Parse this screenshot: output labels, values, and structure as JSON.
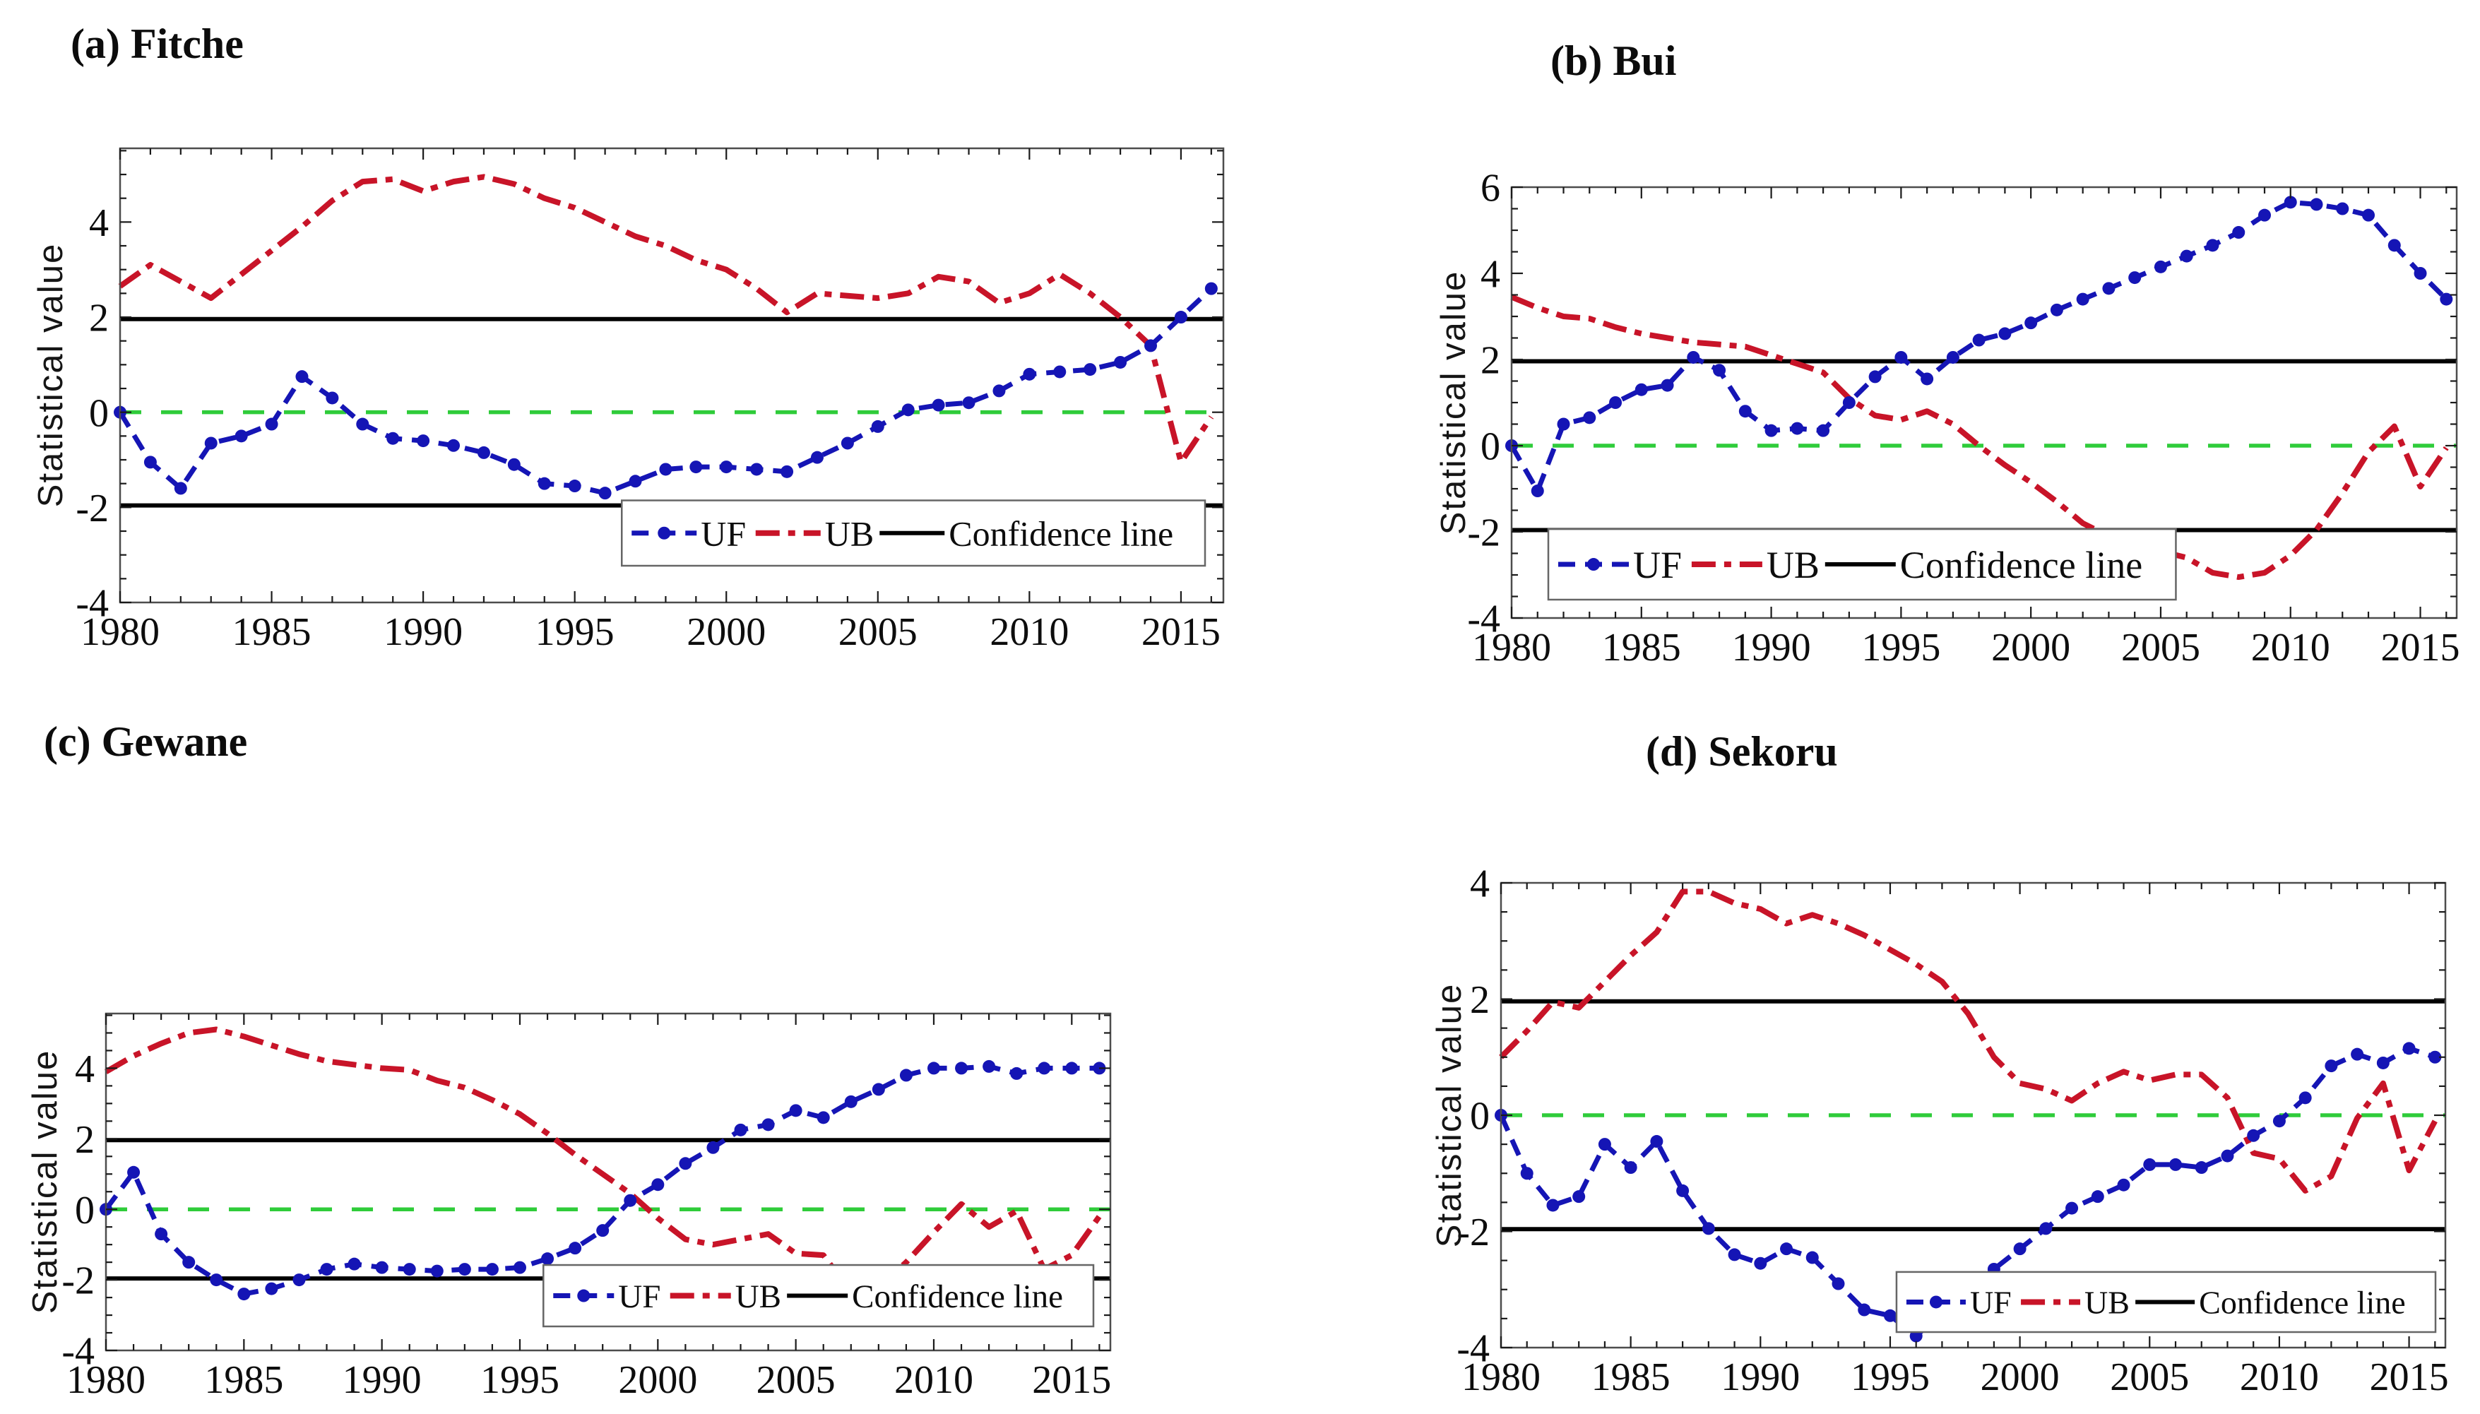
{
  "figure": {
    "ylabel": "Statistical value",
    "legend": {
      "uf_label": "UF",
      "ub_label": "UB",
      "confidence_label": "Confidence line"
    },
    "colors": {
      "uf": "#1515b5",
      "ub": "#c81428",
      "zero_line": "#2fcc3a",
      "confidence": "#000000",
      "axis_border": "#4d4d4d",
      "tick": "#1a1a1a",
      "text": "#0d0d0d",
      "legend_border": "#666666",
      "background": "#ffffff"
    }
  },
  "chart_data": [
    {
      "id": "a",
      "type": "line",
      "title": "(a) Fitche",
      "ylabel": "Statistical value",
      "xlabel": "",
      "xlim": [
        1980,
        2016.4
      ],
      "ylim": [
        -4,
        5.55
      ],
      "xticks": [
        1980,
        1985,
        1990,
        1995,
        2000,
        2005,
        2010,
        2015
      ],
      "yticks": [
        -4,
        -2,
        0,
        2,
        4
      ],
      "grid": false,
      "legend_position": "bottom-right",
      "zero_line": 0,
      "confidence_lines": [
        1.96,
        -1.96
      ],
      "x": [
        1980,
        1981,
        1982,
        1983,
        1984,
        1985,
        1986,
        1987,
        1988,
        1989,
        1990,
        1991,
        1992,
        1993,
        1994,
        1995,
        1996,
        1997,
        1998,
        1999,
        2000,
        2001,
        2002,
        2003,
        2004,
        2005,
        2006,
        2007,
        2008,
        2009,
        2010,
        2011,
        2012,
        2013,
        2014,
        2015,
        2016
      ],
      "series": [
        {
          "name": "UF",
          "values": [
            0,
            -1.05,
            -1.6,
            -0.65,
            -0.5,
            -0.25,
            0.75,
            0.3,
            -0.25,
            -0.55,
            -0.6,
            -0.7,
            -0.85,
            -1.1,
            -1.5,
            -1.55,
            -1.7,
            -1.45,
            -1.2,
            -1.15,
            -1.15,
            -1.2,
            -1.25,
            -0.95,
            -0.65,
            -0.3,
            0.05,
            0.15,
            0.2,
            0.45,
            0.8,
            0.85,
            0.9,
            1.05,
            1.4,
            2.0,
            2.6
          ]
        },
        {
          "name": "UB",
          "values": [
            2.65,
            3.1,
            2.75,
            2.4,
            2.9,
            3.4,
            3.9,
            4.45,
            4.85,
            4.9,
            4.65,
            4.85,
            4.95,
            4.8,
            4.5,
            4.3,
            4.0,
            3.7,
            3.5,
            3.2,
            3.0,
            2.6,
            2.1,
            2.5,
            2.45,
            2.4,
            2.5,
            2.85,
            2.75,
            2.3,
            2.5,
            2.9,
            2.5,
            2.0,
            1.4,
            -1.05,
            -0.1
          ]
        }
      ]
    },
    {
      "id": "b",
      "type": "line",
      "title": "(b) Bui",
      "ylabel": "Statistical value",
      "xlabel": "",
      "xlim": [
        1980,
        2016.4
      ],
      "ylim": [
        -4,
        6
      ],
      "xticks": [
        1980,
        1985,
        1990,
        1995,
        2000,
        2005,
        2010,
        2015
      ],
      "yticks": [
        -4,
        -2,
        0,
        2,
        4,
        6
      ],
      "grid": false,
      "legend_position": "bottom-left",
      "zero_line": 0,
      "confidence_lines": [
        1.96,
        -1.96
      ],
      "x": [
        1980,
        1981,
        1982,
        1983,
        1984,
        1985,
        1986,
        1987,
        1988,
        1989,
        1990,
        1991,
        1992,
        1993,
        1994,
        1995,
        1996,
        1997,
        1998,
        1999,
        2000,
        2001,
        2002,
        2003,
        2004,
        2005,
        2006,
        2007,
        2008,
        2009,
        2010,
        2011,
        2012,
        2013,
        2014,
        2015,
        2016
      ],
      "series": [
        {
          "name": "UF",
          "values": [
            0,
            -1.05,
            0.5,
            0.65,
            1.0,
            1.3,
            1.4,
            2.05,
            1.75,
            0.8,
            0.35,
            0.4,
            0.35,
            1.0,
            1.6,
            2.05,
            1.55,
            2.05,
            2.45,
            2.6,
            2.85,
            3.15,
            3.4,
            3.65,
            3.9,
            4.15,
            4.4,
            4.65,
            4.95,
            5.35,
            5.65,
            5.6,
            5.5,
            5.35,
            4.65,
            4.0,
            3.4
          ]
        },
        {
          "name": "UB",
          "values": [
            3.45,
            3.2,
            3.0,
            2.95,
            2.75,
            2.6,
            2.5,
            2.4,
            2.35,
            2.3,
            2.1,
            1.9,
            1.7,
            1.1,
            0.7,
            0.6,
            0.8,
            0.5,
            0.0,
            -0.45,
            -0.85,
            -1.3,
            -1.8,
            -2.1,
            -2.25,
            -2.45,
            -2.6,
            -2.95,
            -3.05,
            -2.95,
            -2.55,
            -1.95,
            -1.1,
            -0.15,
            0.45,
            -0.95,
            -0.05
          ]
        }
      ]
    },
    {
      "id": "c",
      "type": "line",
      "title": "(c) Gewane",
      "ylabel": "Statistical value",
      "xlabel": "",
      "xlim": [
        1980,
        2016.4
      ],
      "ylim": [
        -4,
        5.55
      ],
      "xticks": [
        1980,
        1985,
        1990,
        1995,
        2000,
        2005,
        2010,
        2015
      ],
      "yticks": [
        -4,
        -2,
        0,
        2,
        4
      ],
      "grid": false,
      "legend_position": "bottom-right",
      "zero_line": 0,
      "confidence_lines": [
        1.96,
        -1.96
      ],
      "x": [
        1980,
        1981,
        1982,
        1983,
        1984,
        1985,
        1986,
        1987,
        1988,
        1989,
        1990,
        1991,
        1992,
        1993,
        1994,
        1995,
        1996,
        1997,
        1998,
        1999,
        2000,
        2001,
        2002,
        2003,
        2004,
        2005,
        2006,
        2007,
        2008,
        2009,
        2010,
        2011,
        2012,
        2013,
        2014,
        2015,
        2016
      ],
      "series": [
        {
          "name": "UF",
          "values": [
            0,
            1.05,
            -0.7,
            -1.5,
            -2.0,
            -2.4,
            -2.25,
            -2.0,
            -1.7,
            -1.55,
            -1.65,
            -1.7,
            -1.75,
            -1.7,
            -1.7,
            -1.65,
            -1.4,
            -1.1,
            -0.6,
            0.25,
            0.7,
            1.3,
            1.75,
            2.25,
            2.4,
            2.8,
            2.6,
            3.05,
            3.4,
            3.8,
            4.0,
            4.0,
            4.05,
            3.85,
            4.0,
            4.0,
            4.0
          ]
        },
        {
          "name": "UB",
          "values": [
            3.9,
            4.35,
            4.7,
            5.0,
            5.1,
            4.9,
            4.65,
            4.4,
            4.2,
            4.1,
            4.0,
            3.95,
            3.65,
            3.45,
            3.1,
            2.7,
            2.15,
            1.55,
            1.0,
            0.45,
            -0.25,
            -0.85,
            -1.0,
            -0.85,
            -0.7,
            -1.25,
            -1.3,
            -2.35,
            -2.2,
            -1.5,
            -0.65,
            0.15,
            -0.5,
            -0.05,
            -1.7,
            -1.3,
            -0.2
          ]
        }
      ]
    },
    {
      "id": "d",
      "type": "line",
      "title": "(d) Sekoru",
      "ylabel": "Statistical value",
      "xlabel": "",
      "xlim": [
        1980,
        2016.4
      ],
      "ylim": [
        -4,
        4
      ],
      "xticks": [
        1980,
        1985,
        1990,
        1995,
        2000,
        2005,
        2010,
        2015
      ],
      "yticks": [
        -4,
        -2,
        0,
        2,
        4
      ],
      "grid": false,
      "legend_position": "bottom-right",
      "zero_line": 0,
      "confidence_lines": [
        1.96,
        -1.96
      ],
      "x": [
        1980,
        1981,
        1982,
        1983,
        1984,
        1985,
        1986,
        1987,
        1988,
        1989,
        1990,
        1991,
        1992,
        1993,
        1994,
        1995,
        1996,
        1997,
        1998,
        1999,
        2000,
        2001,
        2002,
        2003,
        2004,
        2005,
        2006,
        2007,
        2008,
        2009,
        2010,
        2011,
        2012,
        2013,
        2014,
        2015,
        2016
      ],
      "series": [
        {
          "name": "UF",
          "values": [
            0,
            -1.0,
            -1.55,
            -1.4,
            -0.5,
            -0.9,
            -0.45,
            -1.3,
            -1.95,
            -2.4,
            -2.55,
            -2.3,
            -2.45,
            -2.9,
            -3.35,
            -3.45,
            -3.8,
            -3.4,
            -3.0,
            -2.65,
            -2.3,
            -1.95,
            -1.6,
            -1.4,
            -1.2,
            -0.85,
            -0.85,
            -0.9,
            -0.7,
            -0.35,
            -0.1,
            0.3,
            0.85,
            1.05,
            0.9,
            1.15,
            1.0
          ]
        },
        {
          "name": "UB",
          "values": [
            1.0,
            1.45,
            1.95,
            1.85,
            2.3,
            2.75,
            3.15,
            3.85,
            3.85,
            3.65,
            3.55,
            3.3,
            3.45,
            3.3,
            3.1,
            2.85,
            2.6,
            2.3,
            1.75,
            1.0,
            0.55,
            0.45,
            0.25,
            0.55,
            0.75,
            0.6,
            0.7,
            0.7,
            0.3,
            -0.65,
            -0.75,
            -1.3,
            -1.05,
            -0.05,
            0.55,
            -0.95,
            -0.1
          ]
        }
      ]
    }
  ]
}
